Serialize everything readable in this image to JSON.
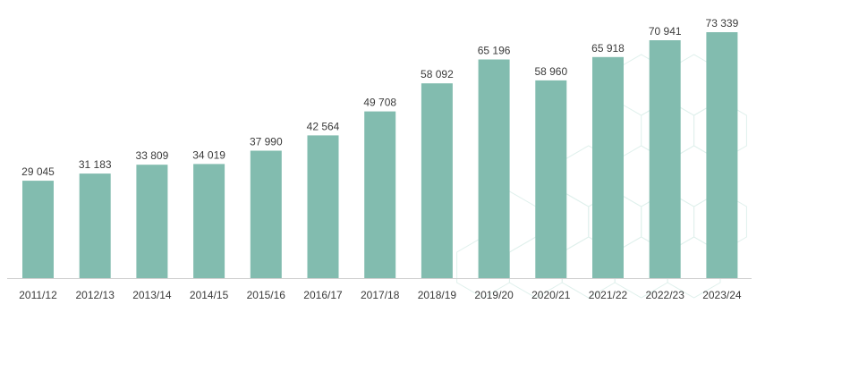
{
  "chart_data": {
    "type": "bar",
    "categories": [
      "2011/12",
      "2012/13",
      "2013/14",
      "2014/15",
      "2015/16",
      "2016/17",
      "2017/18",
      "2018/19",
      "2019/20",
      "2020/21",
      "2021/22",
      "2022/23",
      "2023/24"
    ],
    "values": [
      29045,
      31183,
      33809,
      34019,
      37990,
      42564,
      49708,
      58092,
      65196,
      58960,
      65918,
      70941,
      73339
    ],
    "value_labels": [
      "29 045",
      "31 183",
      "33 809",
      "34 019",
      "37 990",
      "42 564",
      "49 708",
      "58 092",
      "65 196",
      "58 960",
      "65 918",
      "70 941",
      "73 339"
    ],
    "ylim": [
      0,
      73339
    ],
    "grid": false,
    "legend": "none",
    "colors": {
      "bar": "#82bcaf",
      "label": "#3b3b3b",
      "axis": "#d0d0d0",
      "pattern": "#dff0ec"
    }
  }
}
